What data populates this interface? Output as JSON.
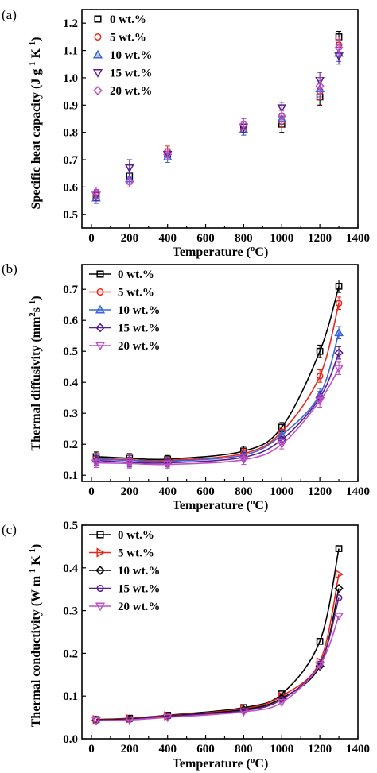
{
  "colors": {
    "s0": "#000000",
    "s5": "#e8281c",
    "s10": "#3a64d8",
    "s15": "#5a1e8c",
    "s20": "#c050c8"
  },
  "chart_data": [
    {
      "panel_label": "(a)",
      "type": "scatter",
      "xlabel": "Temperature (°C)",
      "xlabel_main": "Temperature (",
      "xlabel_sup": "o",
      "xlabel_end": "C)",
      "ylabel": "Specific heat capacity (J g-1 K-1)",
      "ylabel_main": "Specific heat capacity (J g",
      "ylabel_sup1": "-1",
      "ylabel_mid": " K",
      "ylabel_sup2": "-1",
      "ylabel_end": ")",
      "xlim": [
        -50,
        1400
      ],
      "ylim": [
        0.45,
        1.25
      ],
      "xticks": [
        0,
        200,
        400,
        600,
        800,
        1000,
        1200,
        1400
      ],
      "xtick_labels": [
        "0",
        "200",
        "400",
        "600",
        "800",
        "1000",
        "1200",
        "1400"
      ],
      "yticks": [
        0.5,
        0.6,
        0.7,
        0.8,
        0.9,
        1.0,
        1.1,
        1.2
      ],
      "ytick_labels": [
        "0.5",
        "0.6",
        "0.7",
        "0.8",
        "0.9",
        "1.0",
        "1.1",
        "1.2"
      ],
      "legend": "top-right",
      "lines": false,
      "x": [
        25,
        200,
        400,
        800,
        1000,
        1200,
        1300
      ],
      "series": [
        {
          "name": "0 wt.%",
          "marker": "square",
          "color": "#000000",
          "values": [
            0.57,
            0.64,
            0.72,
            0.82,
            0.83,
            0.93,
            1.15
          ],
          "err": [
            0.02,
            0.03,
            0.02,
            0.02,
            0.03,
            0.03,
            0.02
          ]
        },
        {
          "name": "5 wt.%",
          "marker": "circle",
          "color": "#e8281c",
          "values": [
            0.57,
            0.62,
            0.73,
            0.81,
            0.84,
            0.95,
            1.12
          ],
          "err": [
            0.02,
            0.02,
            0.02,
            0.02,
            0.02,
            0.03,
            0.03
          ]
        },
        {
          "name": "10 wt.%",
          "marker": "triangle-up",
          "color": "#3a64d8",
          "values": [
            0.56,
            0.63,
            0.71,
            0.81,
            0.85,
            0.96,
            1.09
          ],
          "err": [
            0.02,
            0.02,
            0.02,
            0.02,
            0.02,
            0.03,
            0.03
          ]
        },
        {
          "name": "15 wt.%",
          "marker": "triangle-down",
          "color": "#5a1e8c",
          "values": [
            0.57,
            0.67,
            0.72,
            0.82,
            0.89,
            0.99,
            1.08
          ],
          "err": [
            0.02,
            0.03,
            0.02,
            0.02,
            0.02,
            0.03,
            0.03
          ]
        },
        {
          "name": "20 wt.%",
          "marker": "diamond",
          "color": "#c050c8",
          "values": [
            0.58,
            0.62,
            0.72,
            0.83,
            0.86,
            0.97,
            1.11
          ],
          "err": [
            0.02,
            0.02,
            0.02,
            0.02,
            0.02,
            0.03,
            0.03
          ]
        }
      ]
    },
    {
      "panel_label": "(b)",
      "type": "line",
      "xlabel": "Temperature (°C)",
      "xlabel_main": "Temperature (",
      "xlabel_sup": "o",
      "xlabel_end": "C)",
      "ylabel": "Thermal diffusivity (mm2s-1)",
      "ylabel_main": "Thermal diffusivity (mm",
      "ylabel_sup1": "2",
      "ylabel_mid": "s",
      "ylabel_sup2": "-1",
      "ylabel_end": ")",
      "xlim": [
        -50,
        1400
      ],
      "ylim": [
        0.08,
        0.78
      ],
      "xticks": [
        0,
        200,
        400,
        600,
        800,
        1000,
        1200,
        1400
      ],
      "xtick_labels": [
        "0",
        "200",
        "400",
        "600",
        "800",
        "1000",
        "1200",
        "1400"
      ],
      "yticks": [
        0.1,
        0.2,
        0.3,
        0.4,
        0.5,
        0.6,
        0.7
      ],
      "ytick_labels": [
        "0.1",
        "0.2",
        "0.3",
        "0.4",
        "0.5",
        "0.6",
        "0.7"
      ],
      "legend": "top-left",
      "lines": true,
      "x": [
        25,
        200,
        400,
        800,
        1000,
        1200,
        1300
      ],
      "series": [
        {
          "name": "0 wt.%",
          "marker": "square",
          "color": "#000000",
          "values": [
            0.16,
            0.155,
            0.152,
            0.178,
            0.255,
            0.5,
            0.71
          ],
          "err": [
            0.015,
            0.015,
            0.012,
            0.015,
            0.015,
            0.02,
            0.02
          ]
        },
        {
          "name": "5 wt.%",
          "marker": "circle",
          "color": "#e8281c",
          "values": [
            0.155,
            0.15,
            0.148,
            0.17,
            0.24,
            0.42,
            0.655
          ],
          "err": [
            0.015,
            0.015,
            0.012,
            0.015,
            0.015,
            0.02,
            0.02
          ]
        },
        {
          "name": "10 wt.%",
          "marker": "triangle-up",
          "color": "#3a64d8",
          "values": [
            0.152,
            0.148,
            0.145,
            0.165,
            0.23,
            0.36,
            0.56
          ],
          "err": [
            0.015,
            0.015,
            0.012,
            0.015,
            0.015,
            0.02,
            0.02
          ]
        },
        {
          "name": "15 wt.%",
          "marker": "diamond",
          "color": "#5a1e8c",
          "values": [
            0.148,
            0.142,
            0.14,
            0.158,
            0.215,
            0.35,
            0.495
          ],
          "err": [
            0.015,
            0.015,
            0.012,
            0.015,
            0.015,
            0.02,
            0.02
          ]
        },
        {
          "name": "20 wt.%",
          "marker": "triangle-down",
          "color": "#c050c8",
          "values": [
            0.14,
            0.138,
            0.135,
            0.15,
            0.2,
            0.34,
            0.445
          ],
          "err": [
            0.015,
            0.015,
            0.012,
            0.015,
            0.015,
            0.02,
            0.02
          ]
        }
      ]
    },
    {
      "panel_label": "(c)",
      "type": "line",
      "xlabel": "Temperature (°C)",
      "xlabel_main": "Temperature (",
      "xlabel_sup": "o",
      "xlabel_end": "C)",
      "ylabel": "Thermal conductivity (W m-1 K-1)",
      "ylabel_main": "Thermal conductivity  (W m",
      "ylabel_sup1": "-1",
      "ylabel_mid": " K",
      "ylabel_sup2": "-1",
      "ylabel_end": ")",
      "xlim": [
        -50,
        1400
      ],
      "ylim": [
        0.0,
        0.5
      ],
      "xticks": [
        0,
        200,
        400,
        600,
        800,
        1000,
        1200,
        1400
      ],
      "xtick_labels": [
        "0",
        "200",
        "400",
        "600",
        "800",
        "1000",
        "1200",
        "1400"
      ],
      "yticks": [
        0.0,
        0.1,
        0.2,
        0.3,
        0.4,
        0.5
      ],
      "ytick_labels": [
        "0.0",
        "0.1",
        "0.2",
        "0.3",
        "0.4",
        "0.5"
      ],
      "legend": "top-left",
      "lines": true,
      "x": [
        25,
        200,
        400,
        800,
        1000,
        1200,
        1300
      ],
      "series": [
        {
          "name": "0 wt.%",
          "marker": "square",
          "color": "#000000",
          "values": [
            0.045,
            0.048,
            0.055,
            0.073,
            0.105,
            0.228,
            0.445
          ],
          "err": [
            0,
            0,
            0,
            0,
            0,
            0,
            0
          ]
        },
        {
          "name": "5 wt.%",
          "marker": "triangle-right",
          "color": "#e8281c",
          "values": [
            0.045,
            0.047,
            0.054,
            0.07,
            0.1,
            0.18,
            0.385
          ],
          "err": [
            0,
            0,
            0,
            0,
            0,
            0,
            0
          ]
        },
        {
          "name": "10 wt.%",
          "marker": "diamond",
          "color": "#000000",
          "values": [
            0.044,
            0.046,
            0.053,
            0.068,
            0.095,
            0.17,
            0.352
          ],
          "err": [
            0,
            0,
            0,
            0,
            0,
            0,
            0
          ]
        },
        {
          "name": "15 wt.%",
          "marker": "circle",
          "color": "#5a1e8c",
          "values": [
            0.043,
            0.045,
            0.052,
            0.066,
            0.092,
            0.175,
            0.33
          ],
          "err": [
            0,
            0,
            0,
            0,
            0,
            0,
            0
          ]
        },
        {
          "name": "20 wt.%",
          "marker": "triangle-down",
          "color": "#c050c8",
          "values": [
            0.042,
            0.044,
            0.05,
            0.063,
            0.085,
            0.172,
            0.287
          ],
          "err": [
            0,
            0,
            0,
            0,
            0,
            0,
            0
          ]
        }
      ]
    }
  ]
}
